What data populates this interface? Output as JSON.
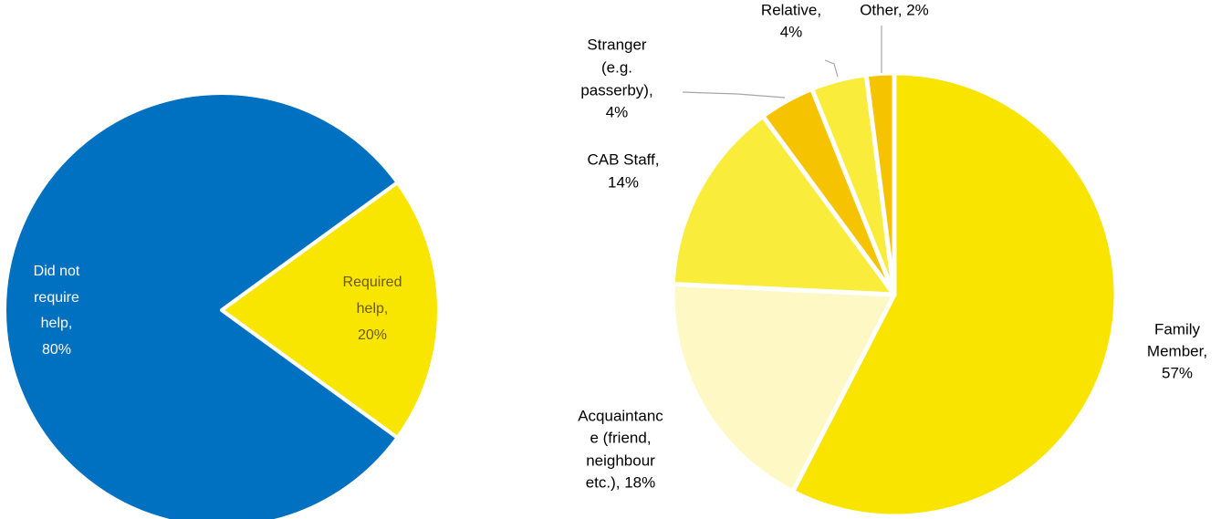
{
  "chart_data": [
    {
      "type": "pie",
      "values": [
        80,
        20
      ],
      "label_lines": [
        [
          "Did not",
          "require",
          "help,",
          "80%"
        ],
        [
          "Required",
          "help,",
          "20%"
        ]
      ],
      "colors": [
        "#0070c0",
        "#f9e600"
      ],
      "label_colors": [
        "#ffffff",
        "#6b5a00"
      ]
    },
    {
      "type": "pie",
      "values": [
        57,
        18,
        14,
        4,
        4,
        2
      ],
      "label_lines": [
        [
          "Family",
          "Member,",
          "57%"
        ],
        [
          "Acquaintanc",
          "e (friend,",
          "neighbour",
          "etc.), 18%"
        ],
        [
          "CAB Staff,",
          "14%"
        ],
        [
          "Stranger",
          "(e.g.",
          "passerby),",
          "4%"
        ],
        [
          "Relative,",
          "4%"
        ],
        [
          "Other, 2%"
        ]
      ],
      "colors": [
        "#f9e400",
        "#fdf8c4",
        "#f9ec3a",
        "#f5c300",
        "#f9ec3a",
        "#f5c300"
      ],
      "label_colors": [
        "#000000",
        "#000000",
        "#000000",
        "#000000",
        "#000000",
        "#000000"
      ]
    }
  ]
}
